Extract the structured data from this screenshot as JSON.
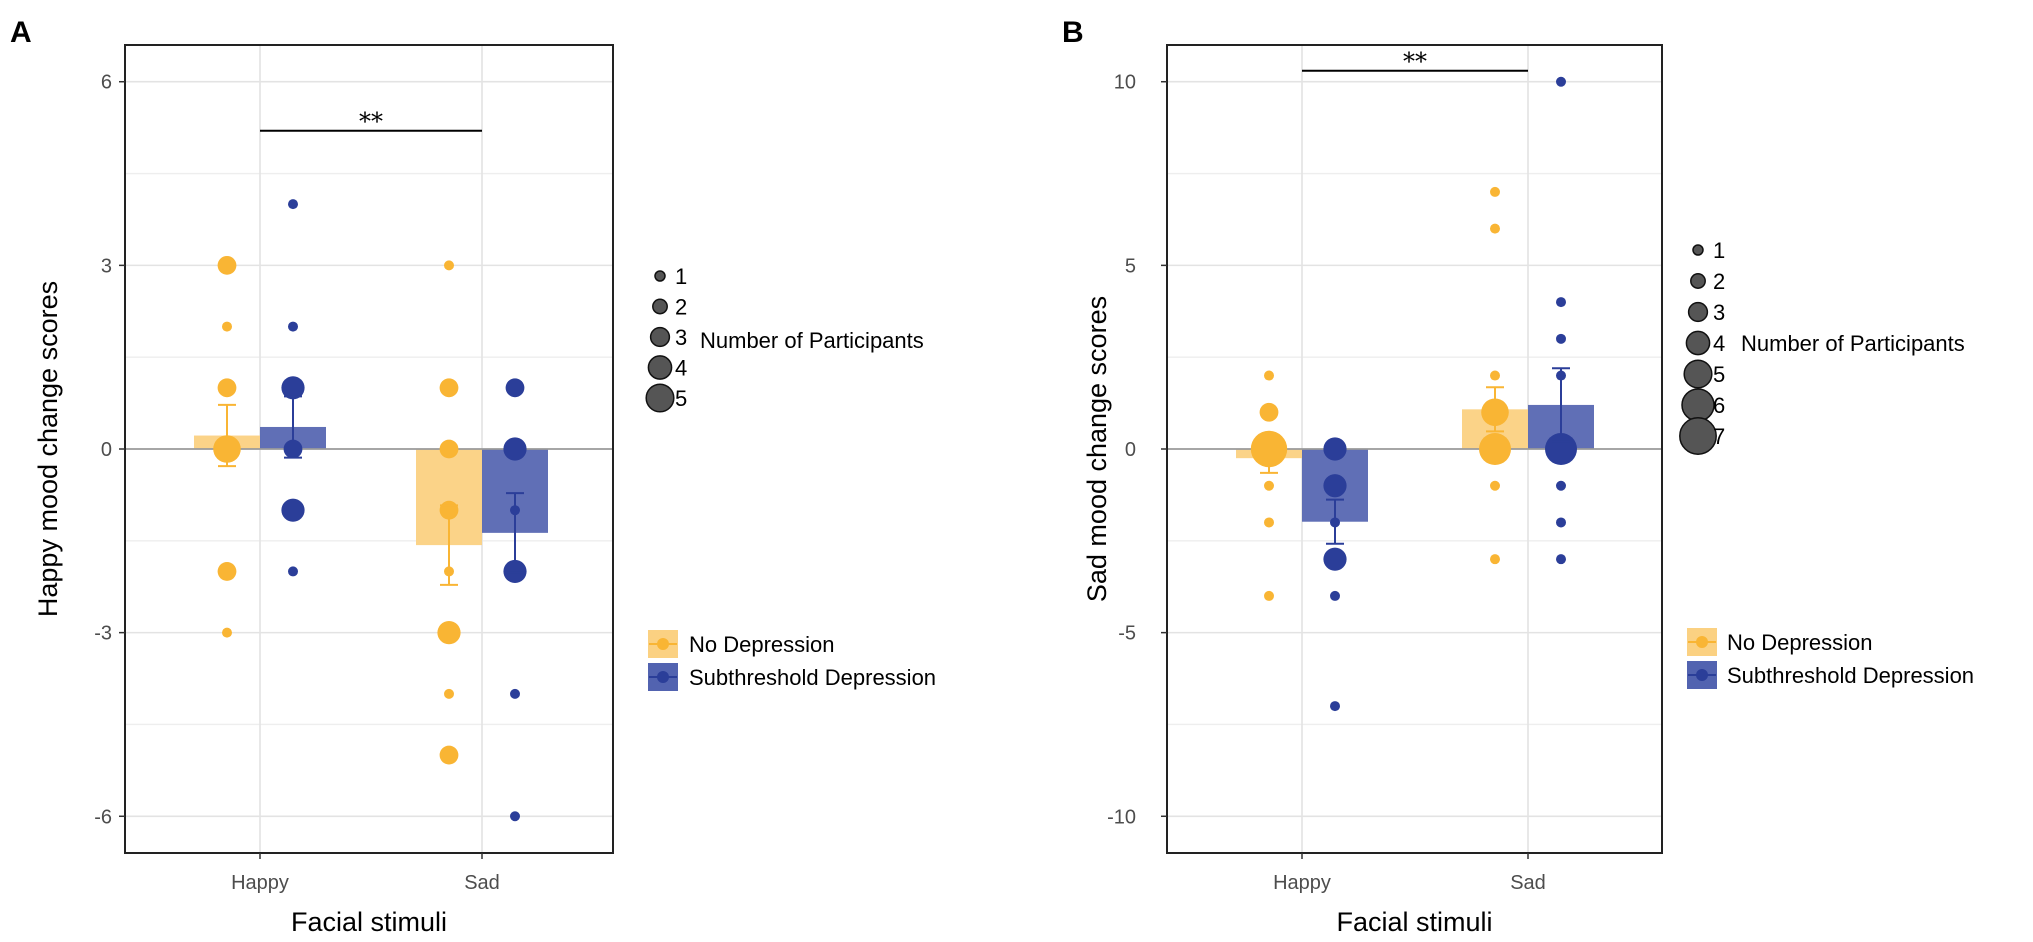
{
  "figure": {
    "panels": [
      "A",
      "B"
    ],
    "size_legend_title": "Number of Participants",
    "group_legend": [
      "No Depression",
      "Subthreshold Depression"
    ]
  },
  "colors": {
    "no_depression": "#f9b534",
    "no_depression_bar": "#fbd182",
    "subthreshold": "#2b3e99",
    "subthreshold_bar": "#5263b0",
    "grid": "#e3e3e3",
    "zero_line": "#9a9a9a"
  },
  "chart_data": [
    {
      "panel": "A",
      "type": "bar",
      "xlabel": "Facial stimuli",
      "ylabel": "Happy mood change scores",
      "categories": [
        "Happy",
        "Sad"
      ],
      "ylim": [
        -6.6,
        6.6
      ],
      "yticks": [
        -6,
        -3,
        0,
        3,
        6
      ],
      "ytick_labels": [
        "-6",
        "-3",
        "0",
        "3",
        "6"
      ],
      "grid": true,
      "legend_position": "right",
      "series": [
        {
          "name": "No Depression",
          "values": [
            0.22,
            -1.57
          ],
          "errors": [
            0.5,
            0.65
          ]
        },
        {
          "name": "Subthreshold Depression",
          "values": [
            0.36,
            -1.37
          ],
          "errors": [
            0.5,
            0.65
          ]
        }
      ],
      "points": [
        {
          "series": "No Depression",
          "category": "Happy",
          "y": 3,
          "n": 3
        },
        {
          "series": "No Depression",
          "category": "Happy",
          "y": 2,
          "n": 1
        },
        {
          "series": "No Depression",
          "category": "Happy",
          "y": 1,
          "n": 3
        },
        {
          "series": "No Depression",
          "category": "Happy",
          "y": 0,
          "n": 5
        },
        {
          "series": "No Depression",
          "category": "Happy",
          "y": -2,
          "n": 3
        },
        {
          "series": "No Depression",
          "category": "Happy",
          "y": -3,
          "n": 1
        },
        {
          "series": "Subthreshold Depression",
          "category": "Happy",
          "y": 4,
          "n": 1
        },
        {
          "series": "Subthreshold Depression",
          "category": "Happy",
          "y": 2,
          "n": 1
        },
        {
          "series": "Subthreshold Depression",
          "category": "Happy",
          "y": 1,
          "n": 4
        },
        {
          "series": "Subthreshold Depression",
          "category": "Happy",
          "y": 0,
          "n": 3
        },
        {
          "series": "Subthreshold Depression",
          "category": "Happy",
          "y": -1,
          "n": 4
        },
        {
          "series": "Subthreshold Depression",
          "category": "Happy",
          "y": -2,
          "n": 1
        },
        {
          "series": "No Depression",
          "category": "Sad",
          "y": 3,
          "n": 1
        },
        {
          "series": "No Depression",
          "category": "Sad",
          "y": 1,
          "n": 3
        },
        {
          "series": "No Depression",
          "category": "Sad",
          "y": 0,
          "n": 3
        },
        {
          "series": "No Depression",
          "category": "Sad",
          "y": -1,
          "n": 3
        },
        {
          "series": "No Depression",
          "category": "Sad",
          "y": -2,
          "n": 1
        },
        {
          "series": "No Depression",
          "category": "Sad",
          "y": -3,
          "n": 4
        },
        {
          "series": "No Depression",
          "category": "Sad",
          "y": -4,
          "n": 1
        },
        {
          "series": "No Depression",
          "category": "Sad",
          "y": -5,
          "n": 3
        },
        {
          "series": "Subthreshold Depression",
          "category": "Sad",
          "y": 1,
          "n": 3
        },
        {
          "series": "Subthreshold Depression",
          "category": "Sad",
          "y": 0,
          "n": 4
        },
        {
          "series": "Subthreshold Depression",
          "category": "Sad",
          "y": -1,
          "n": 1
        },
        {
          "series": "Subthreshold Depression",
          "category": "Sad",
          "y": -2,
          "n": 4
        },
        {
          "series": "Subthreshold Depression",
          "category": "Sad",
          "y": -4,
          "n": 1
        },
        {
          "series": "Subthreshold Depression",
          "category": "Sad",
          "y": -6,
          "n": 1
        }
      ],
      "significance": {
        "label": "**",
        "y": 5.2
      },
      "size_legend": [
        1,
        2,
        3,
        4,
        5
      ]
    },
    {
      "panel": "B",
      "type": "bar",
      "xlabel": "Facial stimuli",
      "ylabel": "Sad mood change scores",
      "categories": [
        "Happy",
        "Sad"
      ],
      "ylim": [
        -11,
        11
      ],
      "yticks": [
        -10,
        -5,
        0,
        5,
        10
      ],
      "ytick_labels": [
        "-10",
        "-5",
        "0",
        "5",
        "10"
      ],
      "grid": true,
      "legend_position": "right",
      "series": [
        {
          "name": "No Depression",
          "values": [
            -0.25,
            1.08
          ],
          "errors": [
            0.4,
            0.6
          ]
        },
        {
          "name": "Subthreshold Depression",
          "values": [
            -1.98,
            1.2
          ],
          "errors": [
            0.6,
            1.0
          ]
        }
      ],
      "points": [
        {
          "series": "No Depression",
          "category": "Happy",
          "y": 2,
          "n": 1
        },
        {
          "series": "No Depression",
          "category": "Happy",
          "y": 1,
          "n": 3
        },
        {
          "series": "No Depression",
          "category": "Happy",
          "y": 0,
          "n": 7
        },
        {
          "series": "No Depression",
          "category": "Happy",
          "y": -1,
          "n": 1
        },
        {
          "series": "No Depression",
          "category": "Happy",
          "y": -2,
          "n": 1
        },
        {
          "series": "No Depression",
          "category": "Happy",
          "y": -4,
          "n": 1
        },
        {
          "series": "Subthreshold Depression",
          "category": "Happy",
          "y": 0,
          "n": 4
        },
        {
          "series": "Subthreshold Depression",
          "category": "Happy",
          "y": -1,
          "n": 4
        },
        {
          "series": "Subthreshold Depression",
          "category": "Happy",
          "y": -2,
          "n": 1
        },
        {
          "series": "Subthreshold Depression",
          "category": "Happy",
          "y": -3,
          "n": 4
        },
        {
          "series": "Subthreshold Depression",
          "category": "Happy",
          "y": -4,
          "n": 1
        },
        {
          "series": "Subthreshold Depression",
          "category": "Happy",
          "y": -7,
          "n": 1
        },
        {
          "series": "No Depression",
          "category": "Sad",
          "y": 7,
          "n": 1
        },
        {
          "series": "No Depression",
          "category": "Sad",
          "y": 6,
          "n": 1
        },
        {
          "series": "No Depression",
          "category": "Sad",
          "y": 2,
          "n": 1
        },
        {
          "series": "No Depression",
          "category": "Sad",
          "y": 1,
          "n": 5
        },
        {
          "series": "No Depression",
          "category": "Sad",
          "y": 0,
          "n": 6
        },
        {
          "series": "No Depression",
          "category": "Sad",
          "y": -1,
          "n": 1
        },
        {
          "series": "No Depression",
          "category": "Sad",
          "y": -3,
          "n": 1
        },
        {
          "series": "Subthreshold Depression",
          "category": "Sad",
          "y": 10,
          "n": 1
        },
        {
          "series": "Subthreshold Depression",
          "category": "Sad",
          "y": 4,
          "n": 1
        },
        {
          "series": "Subthreshold Depression",
          "category": "Sad",
          "y": 3,
          "n": 1
        },
        {
          "series": "Subthreshold Depression",
          "category": "Sad",
          "y": 2,
          "n": 1
        },
        {
          "series": "Subthreshold Depression",
          "category": "Sad",
          "y": 0,
          "n": 6
        },
        {
          "series": "Subthreshold Depression",
          "category": "Sad",
          "y": -1,
          "n": 1
        },
        {
          "series": "Subthreshold Depression",
          "category": "Sad",
          "y": -2,
          "n": 1
        },
        {
          "series": "Subthreshold Depression",
          "category": "Sad",
          "y": -3,
          "n": 1
        }
      ],
      "significance": {
        "label": "**",
        "y": 10.3
      },
      "size_legend": [
        1,
        2,
        3,
        4,
        5,
        6,
        7
      ]
    }
  ]
}
